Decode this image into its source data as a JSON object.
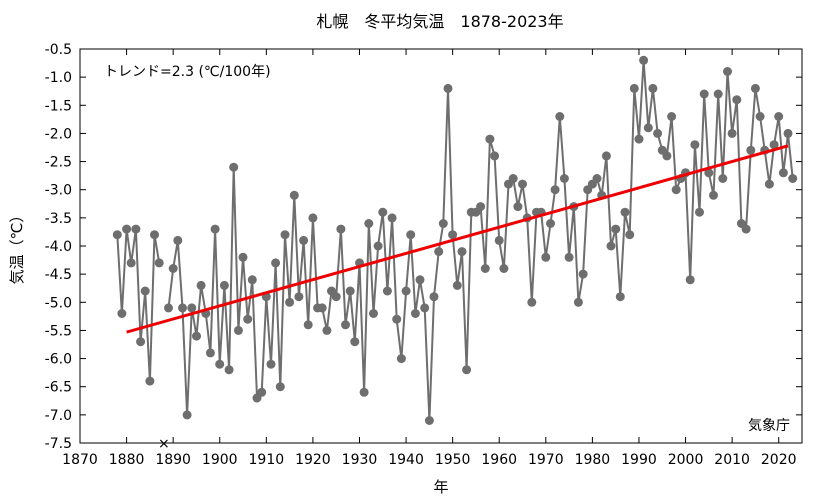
{
  "chart_data": {
    "type": "line",
    "title": "札幌　冬平均気温　1878-2023年",
    "xlabel": "年",
    "ylabel": "気温（℃）",
    "xlim": [
      1870,
      2025
    ],
    "ylim": [
      -7.5,
      -0.5
    ],
    "xticks": [
      1870,
      1880,
      1890,
      1900,
      1910,
      1920,
      1930,
      1940,
      1950,
      1960,
      1970,
      1980,
      1990,
      2000,
      2010,
      2020
    ],
    "yticks": [
      -7.5,
      -7.0,
      -6.5,
      -6.0,
      -5.5,
      -5.0,
      -4.5,
      -4.0,
      -3.5,
      -3.0,
      -2.5,
      -2.0,
      -1.5,
      -1.0,
      -0.5
    ],
    "xtick_labels": [
      "1870",
      "1880",
      "1890",
      "1900",
      "1910",
      "1920",
      "1930",
      "1940",
      "1950",
      "1960",
      "1970",
      "1980",
      "1990",
      "2000",
      "2010",
      "2020"
    ],
    "ytick_labels": [
      "-7.5",
      "-7.0",
      "-6.5",
      "-6.0",
      "-5.5",
      "-5.0",
      "-4.5",
      "-4.0",
      "-3.5",
      "-3.0",
      "-2.5",
      "-2.0",
      "-1.5",
      "-1.0",
      "-0.5"
    ],
    "grid": false,
    "annotation": "トレンド=2.3 (℃/100年)",
    "source": "気象庁",
    "missing_marker": {
      "x": 1888,
      "y": -7.5,
      "symbol": "×"
    },
    "series": [
      {
        "color": "#6e6e6e",
        "segments": [
          {
            "x": [
              1878,
              1879,
              1880,
              1881,
              1882,
              1883,
              1884,
              1885,
              1886,
              1887
            ],
            "y": [
              -3.8,
              -5.2,
              -3.7,
              -4.3,
              -3.7,
              -5.7,
              -4.8,
              -6.4,
              -3.8,
              -4.3
            ]
          },
          {
            "x": [
              1889,
              1890,
              1891,
              1892,
              1893,
              1894,
              1895,
              1896,
              1897,
              1898,
              1899,
              1900,
              1901,
              1902,
              1903,
              1904,
              1905,
              1906,
              1907,
              1908,
              1909,
              1910,
              1911,
              1912,
              1913,
              1914,
              1915,
              1916,
              1917,
              1918,
              1919,
              1920,
              1921,
              1922,
              1923,
              1924,
              1925,
              1926,
              1927,
              1928,
              1929,
              1930,
              1931,
              1932,
              1933,
              1934,
              1935,
              1936,
              1937,
              1938,
              1939,
              1940,
              1941,
              1942,
              1943,
              1944,
              1945,
              1946,
              1947,
              1948,
              1949,
              1950,
              1951,
              1952,
              1953,
              1954,
              1955,
              1956,
              1957,
              1958,
              1959,
              1960,
              1961,
              1962,
              1963,
              1964,
              1965,
              1966,
              1967,
              1968,
              1969,
              1970,
              1971,
              1972,
              1973,
              1974,
              1975,
              1976,
              1977,
              1978,
              1979,
              1980,
              1981,
              1982,
              1983,
              1984,
              1985,
              1986,
              1987,
              1988,
              1989,
              1990,
              1991,
              1992,
              1993,
              1994,
              1995,
              1996,
              1997,
              1998,
              1999,
              2000,
              2001,
              2002,
              2003,
              2004,
              2005,
              2006,
              2007,
              2008,
              2009,
              2010,
              2011,
              2012,
              2013,
              2014,
              2015,
              2016,
              2017,
              2018,
              2019,
              2020,
              2021,
              2022,
              2023
            ],
            "y": [
              -5.1,
              -4.4,
              -3.9,
              -5.1,
              -7.0,
              -5.1,
              -5.6,
              -4.7,
              -5.2,
              -5.9,
              -3.7,
              -6.1,
              -4.7,
              -6.2,
              -2.6,
              -5.5,
              -4.2,
              -5.3,
              -4.6,
              -6.7,
              -6.6,
              -4.9,
              -6.1,
              -4.3,
              -6.5,
              -3.8,
              -5.0,
              -3.1,
              -4.9,
              -3.9,
              -5.4,
              -3.5,
              -5.1,
              -5.1,
              -5.5,
              -4.8,
              -4.9,
              -3.7,
              -5.4,
              -4.8,
              -5.7,
              -4.3,
              -6.6,
              -3.6,
              -5.2,
              -4.0,
              -3.4,
              -4.8,
              -3.5,
              -5.3,
              -6.0,
              -4.8,
              -3.8,
              -5.2,
              -4.6,
              -5.1,
              -7.1,
              -4.9,
              -4.1,
              -3.6,
              -1.2,
              -3.8,
              -4.7,
              -4.1,
              -6.2,
              -3.4,
              -3.4,
              -3.3,
              -4.4,
              -2.1,
              -2.4,
              -3.9,
              -4.4,
              -2.9,
              -2.8,
              -3.3,
              -2.9,
              -3.5,
              -5.0,
              -3.4,
              -3.4,
              -4.2,
              -3.6,
              -3.0,
              -1.7,
              -2.8,
              -4.2,
              -3.3,
              -5.0,
              -4.5,
              -3.0,
              -2.9,
              -2.8,
              -3.1,
              -2.4,
              -4.0,
              -3.7,
              -4.9,
              -3.4,
              -3.8,
              -1.2,
              -2.1,
              -0.7,
              -1.9,
              -1.2,
              -2.0,
              -2.3,
              -2.4,
              -1.7,
              -3.0,
              -2.8,
              -2.7,
              -4.6,
              -2.2,
              -3.4,
              -1.3,
              -2.7,
              -3.1,
              -1.3,
              -2.8,
              -0.9,
              -2.0,
              -1.4,
              -3.6,
              -3.7,
              -2.3,
              -1.2,
              -1.7,
              -2.3,
              -2.9,
              -2.2,
              -1.7,
              -2.7,
              -2.0,
              -2.8
            ]
          }
        ]
      }
    ],
    "trend": {
      "color": "#ee0000",
      "x": [
        1880,
        2022
      ],
      "y": [
        -5.53,
        -2.22
      ]
    }
  }
}
